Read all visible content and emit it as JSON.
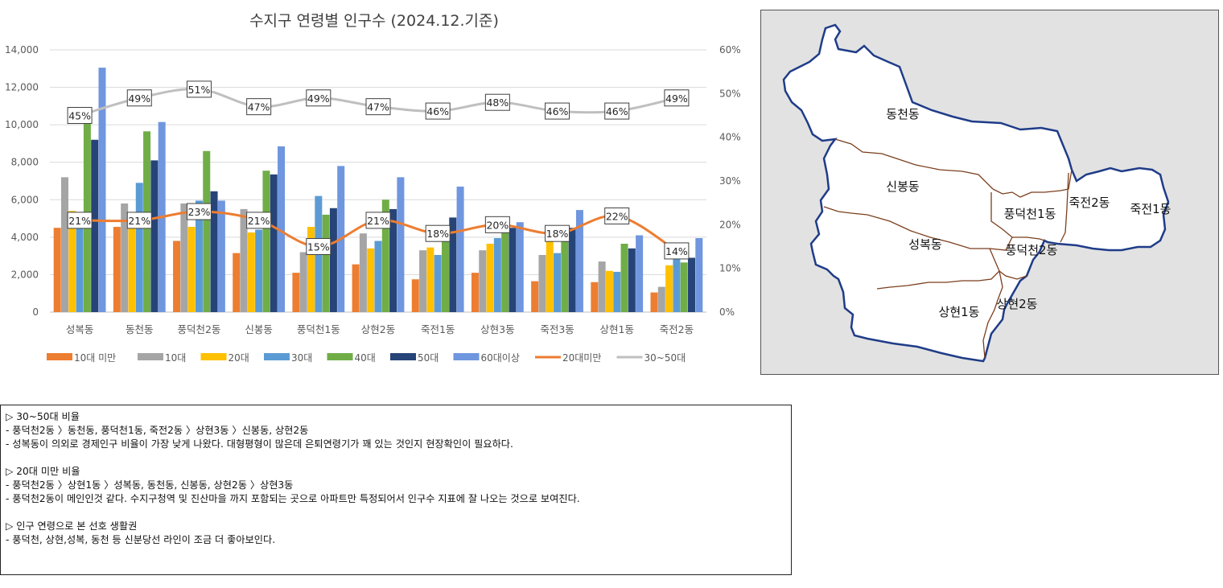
{
  "chart_data": {
    "type": "bar",
    "title": "수지구 연령별 인구수 (2024.12.기준)",
    "categories": [
      "성복동",
      "동천동",
      "풍덕천2동",
      "신봉동",
      "풍덕천1동",
      "상현2동",
      "죽전1동",
      "상현3동",
      "죽전3동",
      "상현1동",
      "죽전2동"
    ],
    "y_left": {
      "min": 0,
      "max": 14000,
      "ticks": [
        "0",
        "2,000",
        "4,000",
        "6,000",
        "8,000",
        "10,000",
        "12,000",
        "14,000"
      ]
    },
    "y_right": {
      "min": 0,
      "max": 0.6,
      "ticks": [
        "0%",
        "10%",
        "20%",
        "30%",
        "40%",
        "50%",
        "60%"
      ]
    },
    "bar_series": [
      {
        "name": "10대 미만",
        "color": "#ED7D31",
        "values": [
          4500,
          4550,
          3800,
          3150,
          2100,
          2550,
          1750,
          2100,
          1650,
          1600,
          1050
        ]
      },
      {
        "name": "10대",
        "color": "#A5A5A5",
        "values": [
          7200,
          5800,
          5800,
          5500,
          3200,
          4200,
          3300,
          3300,
          3050,
          2700,
          1350
        ]
      },
      {
        "name": "20대",
        "color": "#FFC000",
        "values": [
          5400,
          5300,
          4550,
          4250,
          4550,
          3400,
          3450,
          3650,
          4050,
          2200,
          2500
        ]
      },
      {
        "name": "30대",
        "color": "#5B9BD5",
        "values": [
          5100,
          6900,
          5950,
          4400,
          6200,
          3800,
          3050,
          3950,
          3150,
          2150,
          3050
        ]
      },
      {
        "name": "40대",
        "color": "#70AD47",
        "values": [
          10100,
          9650,
          8600,
          7550,
          5200,
          6000,
          4450,
          4900,
          4300,
          3650,
          2650
        ]
      },
      {
        "name": "50대",
        "color": "#264478",
        "values": [
          9200,
          8100,
          6450,
          7350,
          5550,
          5500,
          5050,
          4500,
          4500,
          3400,
          2900
        ]
      },
      {
        "name": "60대이상",
        "color": "#6F96DF",
        "values": [
          13050,
          10150,
          5950,
          8850,
          7800,
          7200,
          6700,
          4800,
          5450,
          4100,
          3950
        ]
      }
    ],
    "line_series": [
      {
        "name": "20대미만",
        "color": "#ED7D31",
        "values": [
          0.21,
          0.21,
          0.23,
          0.21,
          0.15,
          0.21,
          0.18,
          0.2,
          0.18,
          0.22,
          0.14
        ],
        "labels": [
          "21%",
          "21%",
          "23%",
          "21%",
          "15%",
          "21%",
          "18%",
          "20%",
          "18%",
          "22%",
          "14%"
        ]
      },
      {
        "name": "30~50대",
        "color": "#BFBFBF",
        "values": [
          0.45,
          0.49,
          0.51,
          0.47,
          0.49,
          0.47,
          0.46,
          0.48,
          0.46,
          0.46,
          0.49
        ],
        "labels": [
          "45%",
          "49%",
          "51%",
          "47%",
          "49%",
          "47%",
          "46%",
          "48%",
          "46%",
          "46%",
          "49%"
        ]
      }
    ],
    "legend": [
      "10대 미만",
      "10대",
      "20대",
      "30대",
      "40대",
      "50대",
      "60대이상",
      "20대미만",
      "30~50대"
    ],
    "legend_position": "bottom",
    "grid": true
  },
  "map": {
    "labels": [
      {
        "id": "dongcheon",
        "text": "동천동"
      },
      {
        "id": "sinbong",
        "text": "신봉동"
      },
      {
        "id": "pungdeokcheon1",
        "text": "풍덕천1동"
      },
      {
        "id": "jukjeon2",
        "text": "죽전2동"
      },
      {
        "id": "jukjeon1",
        "text": "죽전1동"
      },
      {
        "id": "seongbok",
        "text": "성복동"
      },
      {
        "id": "pungdeokcheon2",
        "text": "풍덕천2동"
      },
      {
        "id": "sanghyeon2",
        "text": "상현2동"
      },
      {
        "id": "sanghyeon1",
        "text": "상현1동"
      }
    ],
    "outline_color": "#1F3C88",
    "border_color": "#7B3F1D"
  },
  "notes": {
    "sections": [
      {
        "heading": "▷ 30~50대 비율",
        "lines": [
          "-  풍덕천2동 〉동천동, 풍덕천1동, 죽전2동 〉상현3동 〉신봉동, 상현2동",
          "-  성복동이 의외로 경제인구 비율이 가장 낮게 나왔다. 대형평형이 많은데 은퇴연령기가 꽤 있는 것인지 현장확인이 필요하다."
        ]
      },
      {
        "heading": "▷ 20대 미만 비율",
        "lines": [
          "-  풍덕천2동 〉상현1동 〉성복동, 동천동, 신봉동, 상현2동 〉상현3동",
          "-  풍덕천2동이 메인인것 같다. 수지구청역 및 진산마을 까지 포함되는 곳으로 아파트만 특정되어서 인구수 지표에 잘 나오는 것으로 보여진다."
        ]
      },
      {
        "heading": "▷ 인구 연령으로 본 선호 생활권",
        "lines": [
          "-  풍덕천, 상현,성복, 동천 등 신분당선 라인이 조금 더 좋아보인다."
        ]
      }
    ]
  }
}
